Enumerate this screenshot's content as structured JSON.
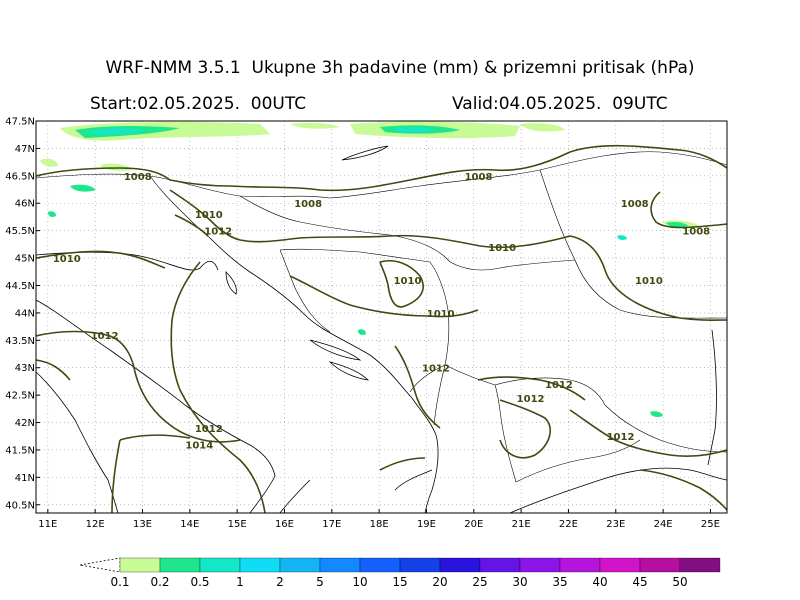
{
  "header": {
    "title": "WRF-NMM 3.5.1  Ukupne 3h padavine (mm) & prizemni pritisak (hPa)",
    "start": "Start:02.05.2025.  00UTC",
    "valid": "Valid:04.05.2025.  09UTC"
  },
  "map": {
    "lat_ticks": [
      "47.5N",
      "47N",
      "46.5N",
      "46N",
      "45.5N",
      "45N",
      "44.5N",
      "44N",
      "43.5N",
      "43N",
      "42.5N",
      "42N",
      "41.5N",
      "41N",
      "40.5N"
    ],
    "lon_ticks": [
      "11E",
      "12E",
      "13E",
      "14E",
      "15E",
      "16E",
      "17E",
      "18E",
      "19E",
      "20E",
      "21E",
      "22E",
      "23E",
      "24E",
      "25E"
    ],
    "isobar_color": "#3d4a10",
    "isobar_labels": [
      {
        "text": "1008",
        "lon": 12.9,
        "lat": 46.5
      },
      {
        "text": "1008",
        "lon": 16.5,
        "lat": 46.0
      },
      {
        "text": "1008",
        "lon": 20.1,
        "lat": 46.5
      },
      {
        "text": "1008",
        "lon": 23.4,
        "lat": 46.0
      },
      {
        "text": "1008",
        "lon": 24.7,
        "lat": 45.5
      },
      {
        "text": "1010",
        "lon": 14.4,
        "lat": 45.8
      },
      {
        "text": "1012",
        "lon": 14.6,
        "lat": 45.5
      },
      {
        "text": "1010",
        "lon": 11.4,
        "lat": 45.0
      },
      {
        "text": "1010",
        "lon": 20.6,
        "lat": 45.2
      },
      {
        "text": "1010",
        "lon": 23.7,
        "lat": 44.6
      },
      {
        "text": "1010",
        "lon": 18.6,
        "lat": 44.6
      },
      {
        "text": "1010",
        "lon": 19.3,
        "lat": 44.0
      },
      {
        "text": "1012",
        "lon": 12.2,
        "lat": 43.6
      },
      {
        "text": "1012",
        "lon": 19.2,
        "lat": 43.0
      },
      {
        "text": "1012",
        "lon": 21.8,
        "lat": 42.7
      },
      {
        "text": "1012",
        "lon": 21.2,
        "lat": 42.45
      },
      {
        "text": "1012",
        "lon": 14.4,
        "lat": 41.9
      },
      {
        "text": "1014",
        "lon": 14.2,
        "lat": 41.6
      },
      {
        "text": "1012",
        "lon": 23.1,
        "lat": 41.75
      }
    ]
  },
  "colorbar": {
    "labels": [
      "0.1",
      "0.2",
      "0.5",
      "1",
      "2",
      "5",
      "10",
      "15",
      "20",
      "25",
      "30",
      "35",
      "40",
      "45",
      "50"
    ],
    "colors": [
      "#c8fa96",
      "#1ee68c",
      "#14e6c8",
      "#0fdcf5",
      "#14b4f5",
      "#1488ff",
      "#1460ff",
      "#1440e6",
      "#2814dc",
      "#6414e6",
      "#8c14e6",
      "#b414dc",
      "#d214c8",
      "#b40fa0",
      "#820f82"
    ]
  }
}
